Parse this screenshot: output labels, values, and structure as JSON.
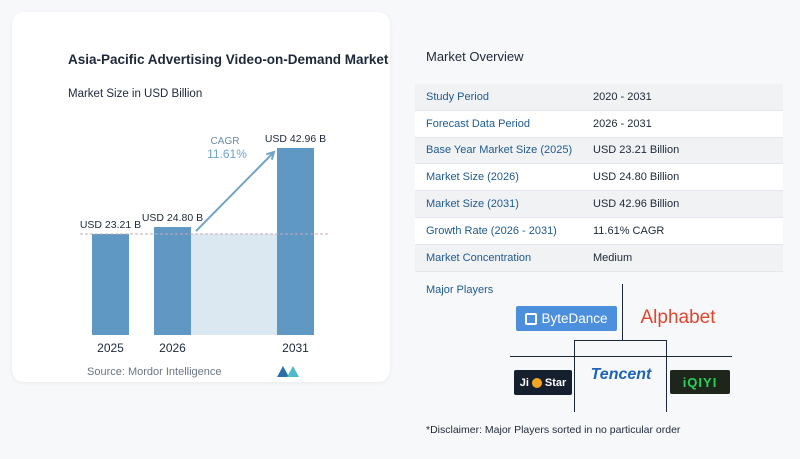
{
  "chart_data": {
    "type": "bar",
    "title": "Asia-Pacific Advertising Video-on-Demand Market",
    "subtitle": "Market Size in USD Billion",
    "categories": [
      "2025",
      "2026",
      "2031"
    ],
    "values": [
      23.21,
      24.8,
      42.96
    ],
    "value_labels": [
      "USD 23.21 B",
      "USD 24.80 B",
      "USD 42.96 B"
    ],
    "cagr_label": "CAGR",
    "cagr_value": "11.61%",
    "ylim": [
      0,
      45
    ],
    "colors": {
      "bar": "#5f98c2",
      "bar_light": "#dce8f1",
      "reference_line": "#c7a8b3",
      "arrow": "#6fa3c8",
      "text": "#1d2838"
    }
  },
  "source": "Source:  Mordor Intelligence",
  "overview": {
    "title": "Market Overview",
    "rows": [
      {
        "label": "Study Period",
        "value": "2020 - 2031"
      },
      {
        "label": "Forecast Data Period",
        "value": "2026 - 2031"
      },
      {
        "label": "Base Year Market Size (2025)",
        "value": "USD 23.21 Billion"
      },
      {
        "label": "Market Size (2026)",
        "value": "USD 24.80 Billion"
      },
      {
        "label": "Market Size (2031)",
        "value": "USD 42.96 Billion"
      },
      {
        "label": "Growth Rate (2026 - 2031)",
        "value": "11.61% CAGR"
      },
      {
        "label": "Market Concentration",
        "value": "Medium"
      }
    ]
  },
  "players": {
    "title": "Major Players",
    "bytedance": "ByteDance",
    "alphabet": "Alphabet",
    "tencent": "Tencent",
    "jio_left": "Ji",
    "jio_right": "Star",
    "iqiyi": "iQIYI"
  },
  "disclaimer": "*Disclaimer: Major Players sorted in no particular order"
}
